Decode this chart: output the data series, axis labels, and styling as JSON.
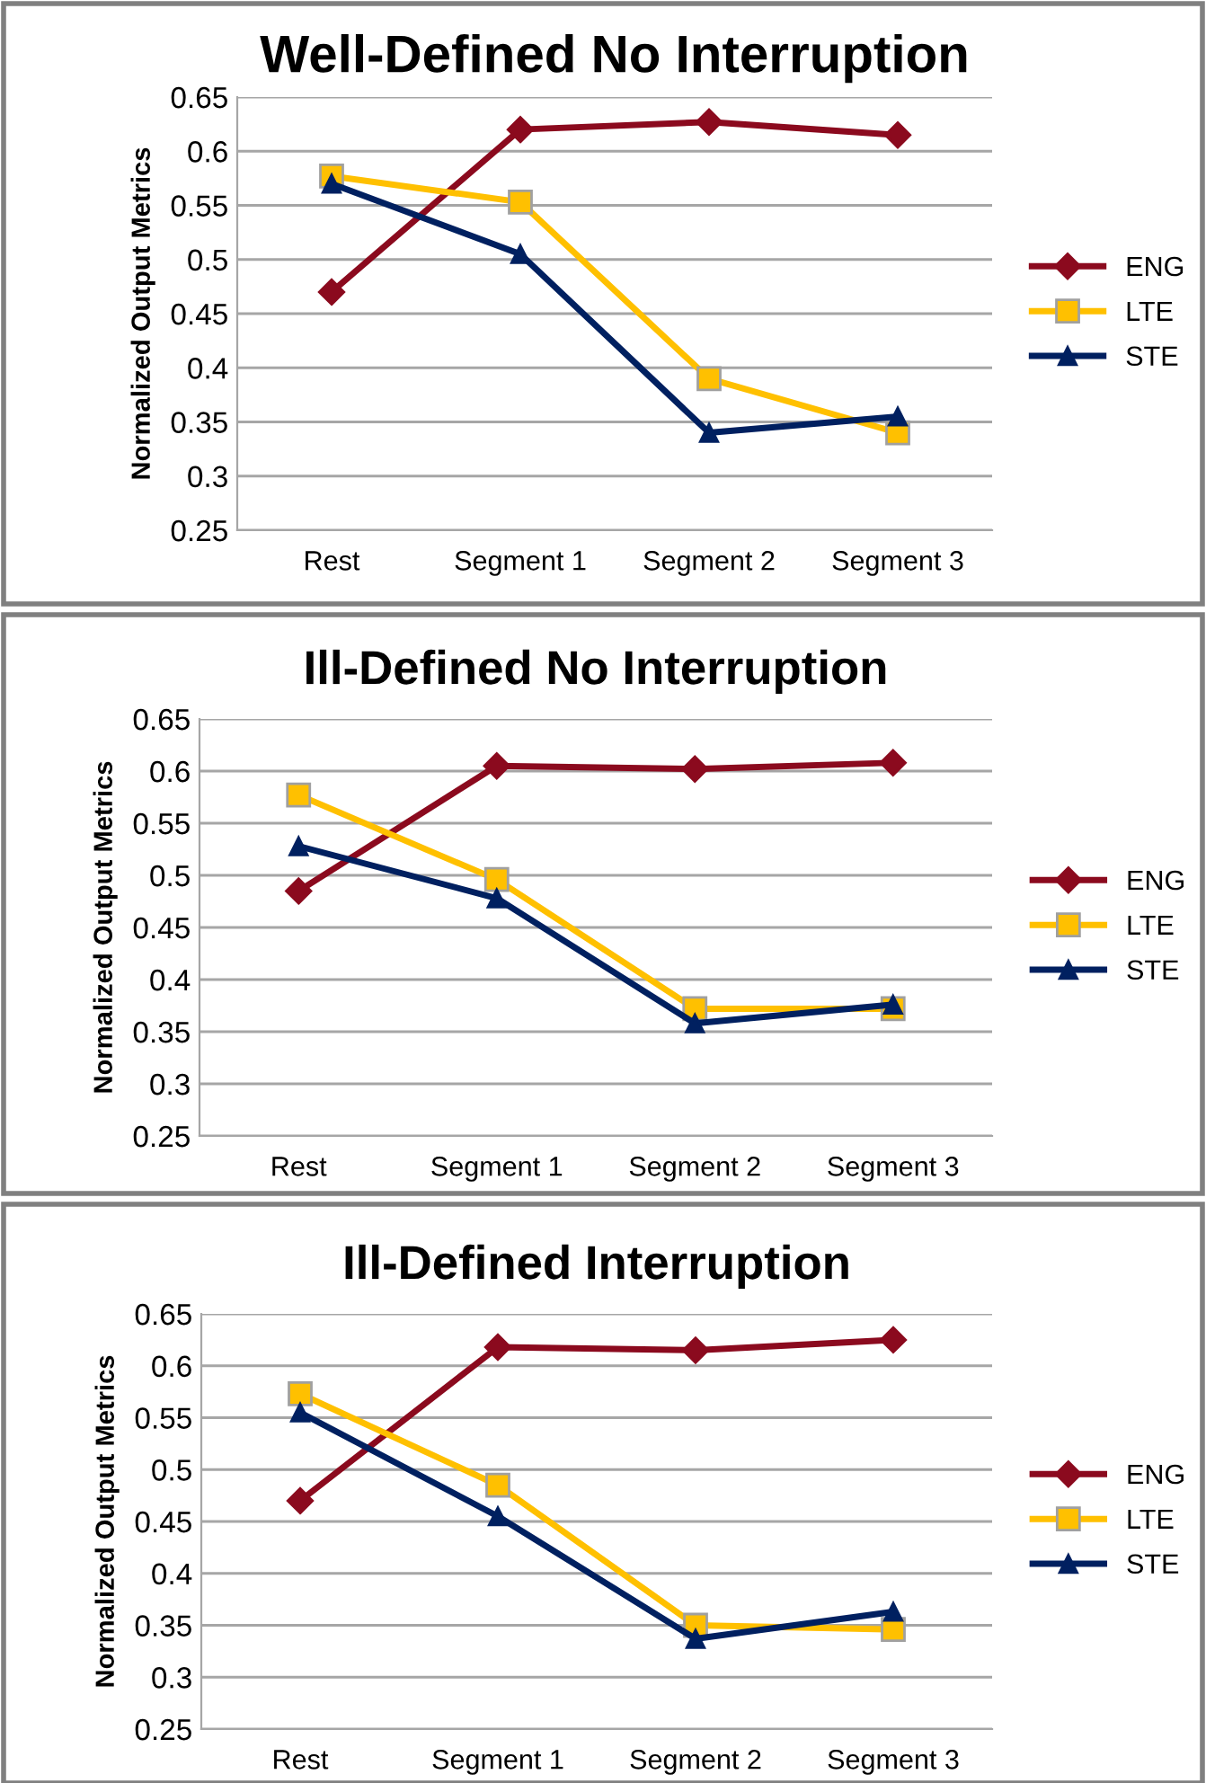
{
  "chart_data": [
    {
      "type": "line",
      "title": "Well-Defined No Interruption",
      "ylabel": "Normalized Output Metrics",
      "categories": [
        "Rest",
        "Segment 1",
        "Segment 2",
        "Segment 3"
      ],
      "ylim": [
        0.25,
        0.65
      ],
      "yticks": [
        0.25,
        0.3,
        0.35,
        0.4,
        0.45,
        0.5,
        0.55,
        0.6,
        0.65
      ],
      "grid": "y",
      "legend": "right",
      "series": [
        {
          "name": "ENG",
          "color": "#8b0a1e",
          "marker": "diamond",
          "values": [
            0.47,
            0.62,
            0.627,
            0.615
          ]
        },
        {
          "name": "LTE",
          "color": "#ffc000",
          "marker": "square",
          "values": [
            0.577,
            0.553,
            0.39,
            0.34
          ]
        },
        {
          "name": "STE",
          "color": "#002060",
          "marker": "triangle",
          "values": [
            0.57,
            0.505,
            0.34,
            0.355
          ]
        }
      ]
    },
    {
      "type": "line",
      "title": "Ill-Defined No Interruption",
      "ylabel": "Normalized Output Metrics",
      "categories": [
        "Rest",
        "Segment 1",
        "Segment 2",
        "Segment 3"
      ],
      "ylim": [
        0.25,
        0.65
      ],
      "yticks": [
        0.25,
        0.3,
        0.35,
        0.4,
        0.45,
        0.5,
        0.55,
        0.6,
        0.65
      ],
      "grid": "y",
      "legend": "right",
      "series": [
        {
          "name": "ENG",
          "color": "#8b0a1e",
          "marker": "diamond",
          "values": [
            0.485,
            0.605,
            0.602,
            0.608
          ]
        },
        {
          "name": "LTE",
          "color": "#ffc000",
          "marker": "square",
          "values": [
            0.577,
            0.496,
            0.372,
            0.372
          ]
        },
        {
          "name": "STE",
          "color": "#002060",
          "marker": "triangle",
          "values": [
            0.528,
            0.478,
            0.358,
            0.376
          ]
        }
      ]
    },
    {
      "type": "line",
      "title": "Ill-Defined Interruption",
      "ylabel": "Normalized Output Metrics",
      "categories": [
        "Rest",
        "Segment 1",
        "Segment 2",
        "Segment 3"
      ],
      "ylim": [
        0.25,
        0.65
      ],
      "yticks": [
        0.25,
        0.3,
        0.35,
        0.4,
        0.45,
        0.5,
        0.55,
        0.6,
        0.65
      ],
      "grid": "y",
      "legend": "right",
      "series": [
        {
          "name": "ENG",
          "color": "#8b0a1e",
          "marker": "diamond",
          "values": [
            0.47,
            0.618,
            0.615,
            0.625
          ]
        },
        {
          "name": "LTE",
          "color": "#ffc000",
          "marker": "square",
          "values": [
            0.573,
            0.485,
            0.35,
            0.346
          ]
        },
        {
          "name": "STE",
          "color": "#002060",
          "marker": "triangle",
          "values": [
            0.555,
            0.455,
            0.337,
            0.363
          ]
        }
      ]
    }
  ]
}
